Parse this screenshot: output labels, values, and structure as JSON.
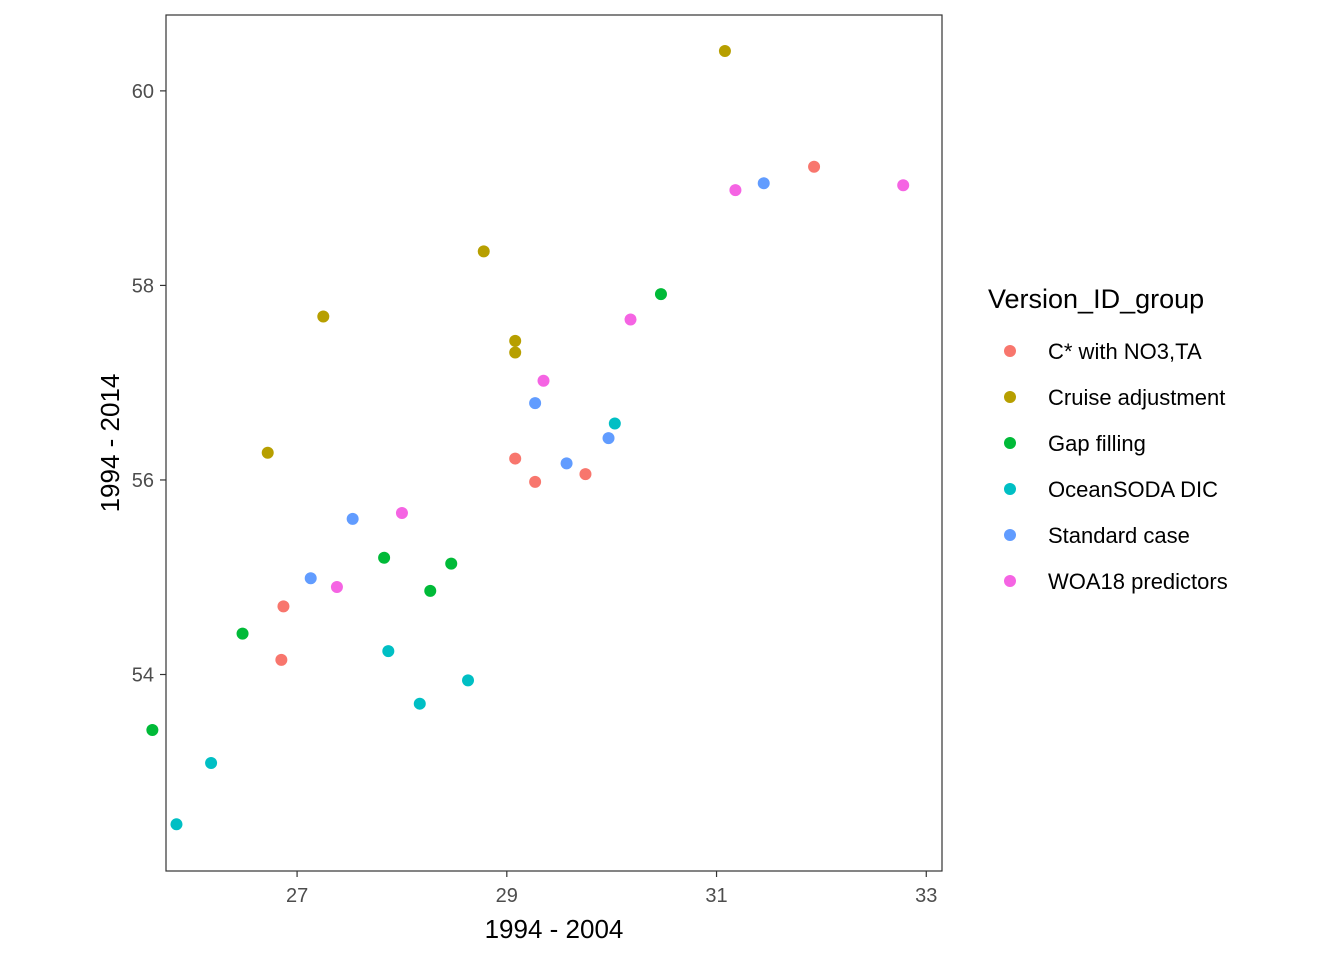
{
  "chart_data": {
    "type": "scatter",
    "title": "",
    "xlabel": "1994 - 2004",
    "ylabel": "1994 - 2014",
    "xlim": [
      25.75,
      33.15
    ],
    "ylim": [
      51.98,
      60.78
    ],
    "x_ticks": [
      27,
      29,
      31,
      33
    ],
    "y_ticks": [
      54,
      56,
      58,
      60
    ],
    "grid": false,
    "legend": {
      "title": "Version_ID_group",
      "position": "right"
    },
    "series": [
      {
        "name": "C* with NO3,TA",
        "color": "#F8766D",
        "points": [
          [
            26.87,
            54.7
          ],
          [
            26.85,
            54.15
          ],
          [
            29.08,
            56.22
          ],
          [
            29.27,
            55.98
          ],
          [
            29.75,
            56.06
          ],
          [
            31.93,
            59.22
          ]
        ]
      },
      {
        "name": "Cruise adjustment",
        "color": "#B79F00",
        "points": [
          [
            26.72,
            56.28
          ],
          [
            27.25,
            57.68
          ],
          [
            28.78,
            58.35
          ],
          [
            29.08,
            57.43
          ],
          [
            29.08,
            57.31
          ],
          [
            31.08,
            60.41
          ]
        ]
      },
      {
        "name": "Gap filling",
        "color": "#00BA38",
        "points": [
          [
            25.62,
            53.43
          ],
          [
            26.48,
            54.42
          ],
          [
            27.83,
            55.2
          ],
          [
            28.27,
            54.86
          ],
          [
            28.47,
            55.14
          ],
          [
            30.47,
            57.91
          ]
        ]
      },
      {
        "name": "OceanSODA DIC",
        "color": "#00BFC4",
        "points": [
          [
            25.85,
            52.46
          ],
          [
            26.18,
            53.09
          ],
          [
            27.87,
            54.24
          ],
          [
            28.17,
            53.7
          ],
          [
            28.63,
            53.94
          ],
          [
            30.03,
            56.58
          ]
        ]
      },
      {
        "name": "Standard case",
        "color": "#619CFF",
        "points": [
          [
            27.13,
            54.99
          ],
          [
            27.53,
            55.6
          ],
          [
            29.27,
            56.79
          ],
          [
            29.57,
            56.17
          ],
          [
            29.97,
            56.43
          ],
          [
            31.45,
            59.05
          ]
        ]
      },
      {
        "name": "WOA18 predictors",
        "color": "#F564E3",
        "points": [
          [
            27.38,
            54.9
          ],
          [
            28.0,
            55.66
          ],
          [
            29.35,
            57.02
          ],
          [
            30.18,
            57.65
          ],
          [
            31.18,
            58.98
          ],
          [
            32.78,
            59.03
          ]
        ]
      }
    ]
  }
}
